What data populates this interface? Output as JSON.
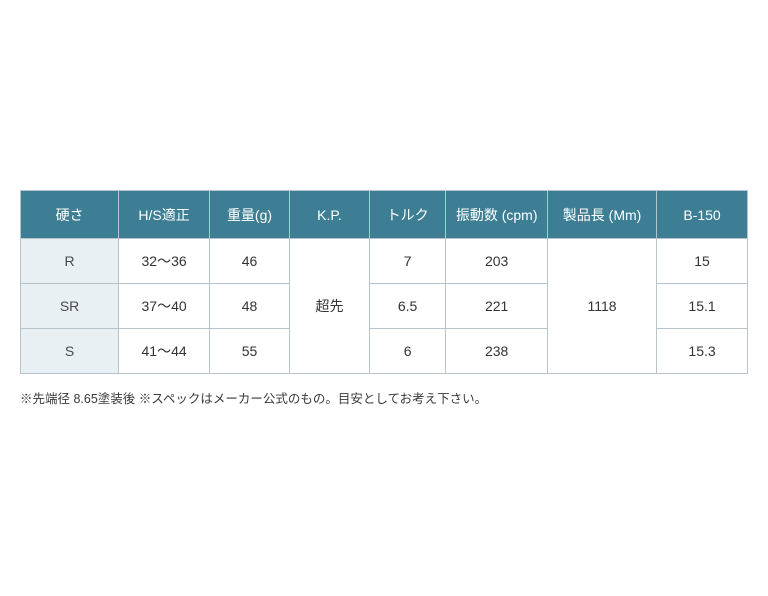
{
  "table": {
    "type": "table",
    "header_bg": "#3d7e94",
    "header_fg": "#ffffff",
    "rowhead_bg": "#e8f0f3",
    "border_color": "#b8c4cc",
    "cell_fg": "#333333",
    "font_size": 14,
    "columns": [
      "硬さ",
      "H/S適正",
      "重量(g)",
      "K.P.",
      "トルク",
      "振動数 (cpm)",
      "製品長 (Mm)",
      "B-150"
    ],
    "col_widths_pct": [
      13.5,
      12.5,
      11,
      11,
      10.5,
      14,
      15,
      12.5
    ],
    "kp_merged": "超先",
    "length_merged": "1118",
    "rows": [
      {
        "hardness": "R",
        "hs": "32〜36",
        "weight": "46",
        "torque": "7",
        "cpm": "203",
        "b150": "15"
      },
      {
        "hardness": "SR",
        "hs": "37〜40",
        "weight": "48",
        "torque": "6.5",
        "cpm": "221",
        "b150": "15.1"
      },
      {
        "hardness": "S",
        "hs": "41〜44",
        "weight": "55",
        "torque": "6",
        "cpm": "238",
        "b150": "15.3"
      }
    ]
  },
  "note": "※先端径 8.65塗装後  ※スペックはメーカー公式のもの。目安としてお考え下さい。"
}
